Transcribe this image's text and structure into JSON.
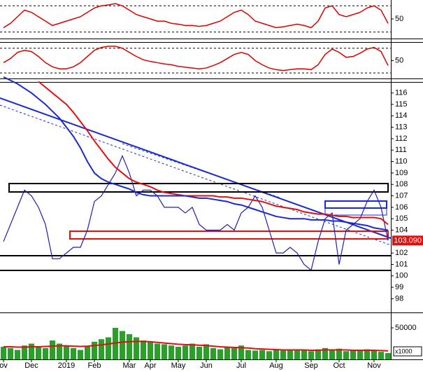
{
  "chart_data": [
    {
      "type": "line",
      "ylim": [
        10,
        90
      ],
      "yticks": [
        50
      ],
      "hlines": [
        80,
        20
      ],
      "color": "#e00000",
      "values": [
        30,
        40,
        55,
        70,
        65,
        55,
        45,
        35,
        40,
        45,
        50,
        55,
        65,
        75,
        80,
        82,
        85,
        80,
        70,
        60,
        55,
        50,
        45,
        45,
        40,
        38,
        35,
        35,
        33,
        35,
        40,
        45,
        55,
        65,
        70,
        60,
        45,
        40,
        35,
        30,
        32,
        35,
        38,
        35,
        30,
        45,
        75,
        80,
        60,
        55,
        60,
        65,
        75,
        80,
        70,
        40
      ]
    },
    {
      "type": "line",
      "ylim": [
        10,
        90
      ],
      "yticks": [
        50
      ],
      "hlines": [
        80,
        20
      ],
      "color": "#e00000",
      "values": [
        45,
        55,
        70,
        75,
        72,
        60,
        45,
        35,
        30,
        30,
        35,
        45,
        60,
        75,
        82,
        85,
        85,
        80,
        70,
        60,
        52,
        48,
        45,
        42,
        40,
        36,
        34,
        32,
        30,
        32,
        38,
        45,
        55,
        65,
        70,
        65,
        50,
        40,
        32,
        28,
        26,
        28,
        30,
        30,
        28,
        40,
        65,
        78,
        70,
        58,
        60,
        68,
        78,
        82,
        72,
        38
      ]
    },
    {
      "type": "line",
      "ylim": [
        96.8,
        116.9
      ],
      "yticks": [
        116,
        115,
        114,
        113,
        112,
        111,
        110,
        109,
        108,
        107,
        106,
        105,
        104,
        102,
        101,
        100,
        99,
        98
      ],
      "last_price": {
        "value": 103.09,
        "label": "103.090"
      },
      "series": [
        {
          "color": "#1f1fb0",
          "values": [
            103,
            104.5,
            106,
            107.5,
            107,
            106,
            104.5,
            101.5,
            101.5,
            102,
            102.5,
            102.5,
            104,
            106.5,
            107,
            108,
            109,
            110.5,
            109,
            107,
            107.5,
            107.5,
            107,
            106,
            106,
            106,
            105.5,
            106,
            104.5,
            104,
            104,
            104,
            104.5,
            104,
            105.5,
            106,
            107,
            106,
            104,
            102,
            102,
            102.5,
            102,
            101,
            100.5,
            103,
            105,
            105.5,
            101,
            104,
            104.5,
            105,
            106.5,
            107.5,
            106,
            103.09
          ]
        },
        {
          "color": "#e01010",
          "values": [
            null,
            null,
            null,
            null,
            null,
            117,
            116.5,
            116,
            115.5,
            115,
            114.3,
            113.5,
            112.7,
            111.8,
            111,
            110.2,
            109.5,
            109,
            108.5,
            108.2,
            108,
            107.8,
            107.5,
            107.3,
            107.2,
            107.1,
            107,
            107,
            107,
            107,
            107,
            106.9,
            106.9,
            106.8,
            106.8,
            106.7,
            106.6,
            106.5,
            106.3,
            106.1,
            106,
            105.9,
            105.8,
            105.6,
            105.5,
            105.4,
            105.4,
            105.3,
            105.2,
            105.2,
            105.1,
            105.1,
            105.1,
            105.1,
            105,
            104.5
          ]
        },
        {
          "color": "#1a2ad0",
          "values": [
            117.4,
            117.1,
            116.8,
            116.4,
            116,
            115.5,
            115,
            114.4,
            113.8,
            113,
            112.2,
            111.2,
            110,
            109,
            108.5,
            108.2,
            108,
            107.8,
            107.6,
            107.3,
            107.1,
            107,
            107,
            107,
            107,
            107,
            107,
            106.9,
            106.8,
            106.8,
            106.7,
            106.6,
            106.5,
            106.3,
            106.2,
            106,
            105.8,
            105.6,
            105.4,
            105.2,
            105.1,
            105,
            105,
            105,
            104.9,
            104.9,
            104.9,
            104.8,
            104.8,
            104.7,
            104.6,
            104.5,
            104.4,
            104.2,
            104.1,
            104
          ]
        }
      ]
    },
    {
      "type": "bar",
      "ylim": [
        0,
        70000
      ],
      "yticks": [
        50000
      ],
      "unit_label": "x1000",
      "color": "#2aa02a",
      "line_color": "#e01010",
      "categories": [
        "ov",
        null,
        null,
        null,
        "Dec",
        null,
        null,
        null,
        null,
        "2019",
        null,
        null,
        null,
        "Feb",
        null,
        null,
        null,
        null,
        "Mar",
        null,
        null,
        "Apr",
        null,
        null,
        null,
        "May",
        null,
        null,
        null,
        "Jun",
        null,
        null,
        null,
        null,
        "Jul",
        null,
        null,
        null,
        null,
        "Aug",
        null,
        null,
        null,
        null,
        "Sep",
        null,
        null,
        null,
        "Oct",
        null,
        null,
        null,
        null,
        "Nov",
        null,
        null
      ],
      "values": [
        20000,
        18000,
        15000,
        22000,
        25000,
        20000,
        18000,
        30000,
        25000,
        22000,
        18000,
        15000,
        20000,
        28000,
        32000,
        35000,
        50000,
        45000,
        40000,
        35000,
        30000,
        28000,
        25000,
        24000,
        22000,
        20000,
        22000,
        25000,
        20000,
        24000,
        18000,
        16000,
        20000,
        18000,
        22000,
        15000,
        14000,
        15000,
        13000,
        15000,
        14000,
        16000,
        15000,
        14000,
        13000,
        16000,
        18000,
        15000,
        17000,
        13000,
        14000,
        15000,
        16000,
        14000,
        12000,
        10000
      ],
      "line_values": [
        20000,
        20000,
        19500,
        19500,
        20000,
        20000,
        20500,
        21000,
        21500,
        21500,
        21000,
        20500,
        21000,
        22000,
        23000,
        24500,
        26000,
        27500,
        28000,
        28500,
        28500,
        28000,
        27000,
        26000,
        25000,
        24000,
        23500,
        23000,
        22500,
        22000,
        21000,
        20000,
        19500,
        19000,
        18500,
        18000,
        17000,
        16500,
        16000,
        15500,
        15000,
        15000,
        15000,
        15000,
        14500,
        14500,
        15000,
        15000,
        15000,
        15000,
        14500,
        14500,
        14500,
        14500,
        14000,
        13500
      ]
    }
  ]
}
